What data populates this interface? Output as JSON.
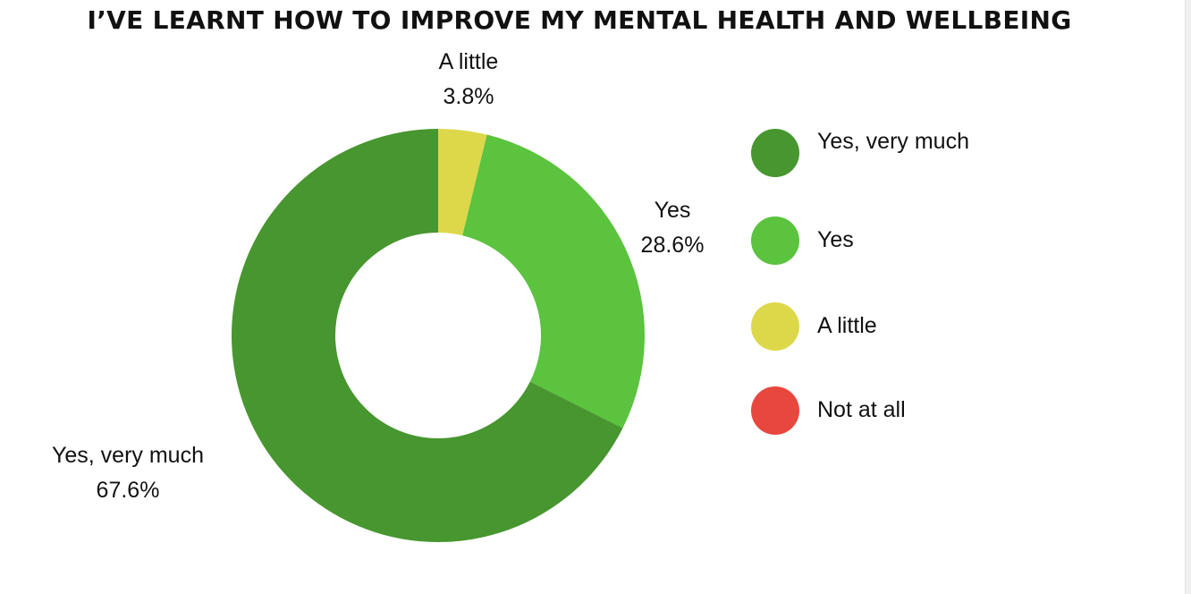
{
  "chart_data": {
    "type": "pie",
    "title": "I’VE LEARNT HOW TO IMPROVE MY MENTAL HEALTH AND WELLBEING",
    "categories": [
      "Yes, very much",
      "Yes",
      "A little",
      "Not at all"
    ],
    "values": [
      67.6,
      28.6,
      3.8,
      0
    ],
    "data_labels": [
      "67.6%",
      "28.6%",
      "3.8%",
      ""
    ],
    "colors": [
      "#47962f",
      "#5bc33e",
      "#ddd84a",
      "#e8473e"
    ],
    "donut": true,
    "legend_position": "right"
  }
}
